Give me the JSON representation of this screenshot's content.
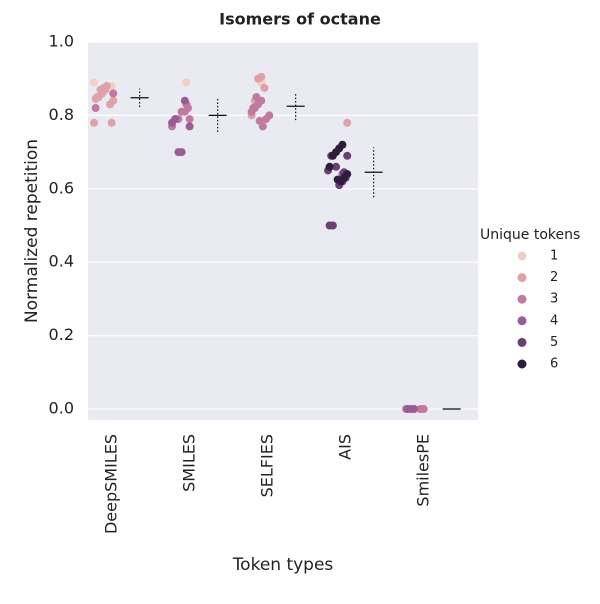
{
  "chart_data": {
    "type": "strip",
    "title": "Isomers of octane",
    "x_label": "Token types",
    "y_label": "Normalized repetition",
    "legend_title": "Unique tokens",
    "categories": [
      "DeepSMILES",
      "SMILES",
      "SELFIES",
      "AIS",
      "SmilesPE"
    ],
    "ylim": [
      -0.03,
      1.0
    ],
    "yticks": [
      {
        "value": 0,
        "label": "0.0"
      },
      0.2,
      0.4,
      0.6,
      0.8,
      {
        "value": 1,
        "label": "1.0"
      }
    ],
    "grid": true,
    "background": "#eaeaf2",
    "means": [
      0.848,
      0.8,
      0.825,
      0.645,
      0
    ],
    "stds": [
      0.025,
      0.045,
      0.038,
      0.068,
      0
    ],
    "series": [
      {
        "name": "1",
        "color": "#efd0c6",
        "x": [
          "DeepSMILES",
          "DeepSMILES",
          "SMILES",
          "SELFIES"
        ],
        "values": [
          0.89,
          0.88,
          0.89,
          0.89
        ]
      },
      {
        "name": "2",
        "color": "#dea1a6",
        "x": [
          "DeepSMILES",
          "DeepSMILES",
          "DeepSMILES",
          "DeepSMILES",
          "DeepSMILES",
          "DeepSMILES",
          "DeepSMILES",
          "DeepSMILES",
          "DeepSMILES",
          "DeepSMILES",
          "DeepSMILES",
          "DeepSMILES",
          "SELFIES",
          "SELFIES",
          "SELFIES",
          "SELFIES",
          "SELFIES",
          "AIS"
        ],
        "values": [
          0.87,
          0.86,
          0.85,
          0.845,
          0.84,
          0.83,
          0.88,
          0.875,
          0.87,
          0.85,
          0.78,
          0.78,
          0.875,
          0.905,
          0.9,
          0.84,
          0.8,
          0.78
        ]
      },
      {
        "name": "3",
        "color": "#c17a9f",
        "x": [
          "DeepSMILES",
          "DeepSMILES",
          "SMILES",
          "SMILES",
          "SMILES",
          "SMILES",
          "SMILES",
          "SMILES",
          "SMILES",
          "SMILES",
          "SELFIES",
          "SELFIES",
          "SELFIES",
          "SELFIES",
          "SELFIES",
          "SELFIES",
          "SELFIES",
          "SELFIES",
          "SELFIES",
          "SELFIES",
          "SmilesPE",
          "SmilesPE",
          "SmilesPE"
        ],
        "values": [
          0.82,
          0.86,
          0.82,
          0.81,
          0.81,
          0.79,
          0.79,
          0.77,
          0.79,
          0.83,
          0.84,
          0.83,
          0.82,
          0.81,
          0.8,
          0.79,
          0.77,
          0.785,
          0.85,
          0.82,
          0,
          0,
          0
        ]
      },
      {
        "name": "4",
        "color": "#9b5b93",
        "x": [
          "SMILES",
          "SMILES",
          "SMILES",
          "SMILES",
          "SMILES",
          "SMILES",
          "AIS",
          "AIS",
          "SmilesPE",
          "SmilesPE",
          "SmilesPE"
        ],
        "values": [
          0.84,
          0.7,
          0.7,
          0.79,
          0.78,
          0.77,
          0.64,
          0.62,
          0,
          0,
          0
        ]
      },
      {
        "name": "5",
        "color": "#6b3e76",
        "x": [
          "AIS",
          "AIS",
          "AIS",
          "AIS",
          "AIS",
          "AIS",
          "AIS",
          "AIS",
          "AIS",
          "AIS"
        ],
        "values": [
          0.69,
          0.65,
          0.63,
          0.62,
          0.61,
          0.66,
          0.5,
          0.5,
          0.69,
          0.645
        ]
      },
      {
        "name": "6",
        "color": "#2e1e3b",
        "x": [
          "AIS",
          "AIS",
          "AIS",
          "AIS",
          "AIS",
          "AIS",
          "AIS",
          "AIS",
          "AIS"
        ],
        "values": [
          0.72,
          0.71,
          0.7,
          0.69,
          0.66,
          0.64,
          0.63,
          0.62,
          0.625
        ]
      }
    ]
  }
}
